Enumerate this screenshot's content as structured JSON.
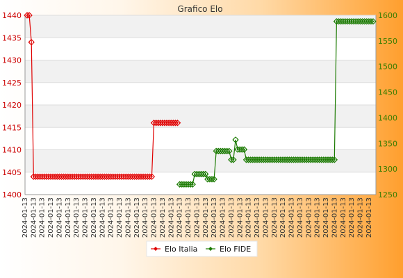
{
  "chart_data": {
    "type": "line",
    "title": "Grafico Elo",
    "y_left": {
      "series": "Elo Italia",
      "ylim": [
        1400,
        1440
      ],
      "ticks": [
        1400,
        1405,
        1410,
        1415,
        1420,
        1425,
        1430,
        1435,
        1440
      ]
    },
    "y_right": {
      "series": "Elo FIDE",
      "ylim": [
        1250,
        1600
      ],
      "ticks": [
        1250,
        1300,
        1350,
        1400,
        1450,
        1500,
        1550,
        1600
      ]
    },
    "x_label_pattern": "2024-01-13",
    "grid": true,
    "legend_position": "bottom-center",
    "colors": {
      "italia": "#e00000",
      "fide": "#1a7a00"
    },
    "series": [
      {
        "name": "Elo Italia",
        "axis": "left",
        "segments": [
          {
            "from": 0,
            "to": 1,
            "value": 1440
          },
          {
            "from": 2,
            "to": 2,
            "value": 1434
          },
          {
            "from": 3,
            "to": 58,
            "value": 1404
          },
          {
            "from": 59,
            "to": 70,
            "value": 1416
          }
        ]
      },
      {
        "name": "Elo FIDE",
        "axis": "right",
        "segments": [
          {
            "from": 71,
            "to": 77,
            "value": 1270
          },
          {
            "from": 78,
            "to": 83,
            "value": 1290
          },
          {
            "from": 84,
            "to": 87,
            "value": 1280
          },
          {
            "from": 88,
            "to": 88,
            "value": 1335
          },
          {
            "from": 89,
            "to": 94,
            "value": 1335
          },
          {
            "from": 95,
            "to": 96,
            "value": 1318
          },
          {
            "from": 97,
            "to": 97,
            "value": 1357
          },
          {
            "from": 98,
            "to": 101,
            "value": 1338
          },
          {
            "from": 102,
            "to": 143,
            "value": 1318
          },
          {
            "from": 144,
            "to": 161,
            "value": 1588
          }
        ]
      }
    ]
  }
}
